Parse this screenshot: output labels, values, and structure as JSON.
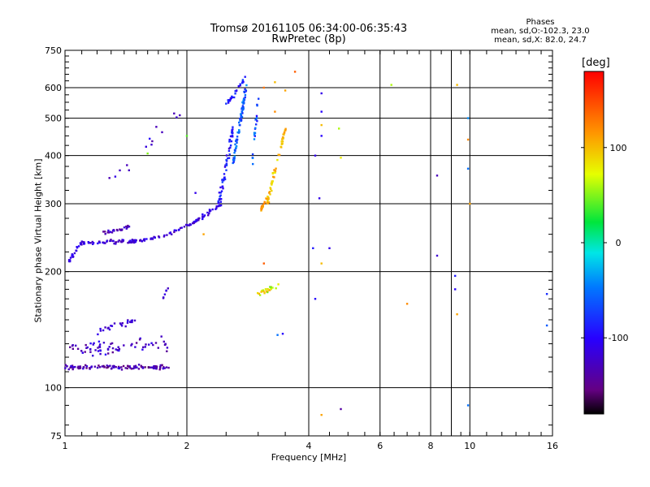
{
  "header": {
    "title_line1": "Tromsø 20161105 06:34:00-06:35:43",
    "title_line2": "RwPretec (8p)"
  },
  "phases_box": {
    "title": "Phases",
    "line_o": "mean, sd,O:-102.3, 23.0",
    "line_x": "mean, sd,X:  82.0, 24.7"
  },
  "colorbar": {
    "unit": "[deg]",
    "min": -180,
    "max": 180,
    "ticks": [
      100,
      0,
      -100
    ],
    "tick_labels": [
      "100",
      "0",
      "-100"
    ]
  },
  "chart_data": {
    "type": "scatter",
    "xlabel": "Frequency [MHz]",
    "ylabel": "Stationary phase Virtual Height [km]",
    "x_scale": "log",
    "y_scale": "log",
    "xlim": [
      1,
      16
    ],
    "ylim": [
      75,
      750
    ],
    "x_ticks": [
      1,
      2,
      4,
      6,
      8,
      10,
      16
    ],
    "x_tick_labels": [
      "1",
      "2",
      "4",
      "6",
      "8",
      "10",
      "16"
    ],
    "y_ticks": [
      75,
      100,
      200,
      300,
      400,
      500,
      600,
      750
    ],
    "y_tick_labels": [
      "75",
      "100",
      "200",
      "300",
      "400",
      "500",
      "600",
      "750"
    ],
    "x_gridlines": [
      2,
      4,
      6,
      8,
      9,
      10
    ],
    "y_gridlines": [
      100,
      200,
      300,
      400,
      500,
      600
    ],
    "clusters": [
      {
        "from": [
          1.02,
          212
        ],
        "to": [
          1.1,
          238
        ],
        "n": 20,
        "spread": 0.012,
        "phase": [
          -120,
          -100
        ]
      },
      {
        "from": [
          1.1,
          238
        ],
        "to": [
          1.5,
          240
        ],
        "n": 60,
        "spread": 0.012,
        "phase": [
          -140,
          -100
        ]
      },
      {
        "from": [
          1.2,
          250
        ],
        "to": [
          1.45,
          262
        ],
        "n": 25,
        "spread": 0.012,
        "phase": [
          -150,
          -110
        ]
      },
      {
        "from": [
          1.5,
          240
        ],
        "to": [
          1.8,
          248
        ],
        "n": 22,
        "spread": 0.008,
        "phase": [
          -140,
          -100
        ]
      },
      {
        "from": [
          1.8,
          250
        ],
        "to": [
          2.1,
          270
        ],
        "n": 25,
        "spread": 0.008,
        "phase": [
          -140,
          -100
        ]
      },
      {
        "from": [
          2.1,
          270
        ],
        "to": [
          2.45,
          300
        ],
        "n": 30,
        "spread": 0.012,
        "phase": [
          -130,
          -95
        ]
      },
      {
        "from": [
          2.4,
          300
        ],
        "to": [
          2.6,
          470
        ],
        "n": 60,
        "spread": 0.02,
        "phase": [
          -120,
          -70
        ]
      },
      {
        "from": [
          2.6,
          380
        ],
        "to": [
          2.8,
          600
        ],
        "n": 70,
        "spread": 0.015,
        "phase": [
          -90,
          -30
        ]
      },
      {
        "from": [
          2.5,
          540
        ],
        "to": [
          2.8,
          640
        ],
        "n": 25,
        "spread": 0.015,
        "phase": [
          -110,
          -70
        ]
      },
      {
        "from": [
          2.9,
          380
        ],
        "to": [
          3.0,
          560
        ],
        "n": 20,
        "spread": 0.012,
        "phase": [
          -100,
          -40
        ]
      },
      {
        "from": [
          3.05,
          290
        ],
        "to": [
          3.15,
          310
        ],
        "n": 15,
        "spread": 0.01,
        "phase": [
          100,
          130
        ]
      },
      {
        "from": [
          3.15,
          300
        ],
        "to": [
          3.5,
          470
        ],
        "n": 55,
        "spread": 0.015,
        "phase": [
          80,
          120
        ]
      },
      {
        "from": [
          3.0,
          175
        ],
        "to": [
          3.4,
          185
        ],
        "n": 25,
        "spread": 0.018,
        "phase": [
          40,
          110
        ]
      },
      {
        "from": [
          1.0,
          113
        ],
        "to": [
          1.8,
          113
        ],
        "n": 110,
        "spread": 0.012,
        "phase": [
          -160,
          -110
        ]
      },
      {
        "from": [
          1.0,
          125
        ],
        "to": [
          1.8,
          130
        ],
        "n": 70,
        "spread": 0.045,
        "phase": [
          -150,
          -100
        ]
      },
      {
        "from": [
          1.2,
          140
        ],
        "to": [
          1.5,
          150
        ],
        "n": 25,
        "spread": 0.015,
        "phase": [
          -130,
          -100
        ]
      },
      {
        "from": [
          1.3,
          340
        ],
        "to": [
          1.9,
          520
        ],
        "n": 14,
        "spread": 0.04,
        "phase": [
          -140,
          -100
        ]
      },
      {
        "from": [
          1.75,
          170
        ],
        "to": [
          1.8,
          185
        ],
        "n": 6,
        "spread": 0.008,
        "phase": [
          -140,
          -110
        ]
      }
    ],
    "points": [
      [
        4.3,
        580,
        -110
      ],
      [
        4.3,
        85,
        110
      ],
      [
        4.8,
        88,
        -140
      ],
      [
        4.5,
        230,
        -110
      ],
      [
        4.1,
        230,
        -90
      ],
      [
        4.15,
        170,
        -100
      ],
      [
        4.3,
        210,
        100
      ],
      [
        4.3,
        480,
        100
      ],
      [
        4.3,
        450,
        -100
      ],
      [
        4.75,
        470,
        60
      ],
      [
        4.8,
        395,
        80
      ],
      [
        6.4,
        610,
        60
      ],
      [
        7.0,
        165,
        120
      ],
      [
        8.3,
        355,
        -130
      ],
      [
        8.3,
        220,
        -120
      ],
      [
        9.2,
        195,
        -90
      ],
      [
        9.2,
        180,
        -100
      ],
      [
        9.3,
        155,
        110
      ],
      [
        9.3,
        610,
        100
      ],
      [
        9.9,
        500,
        -40
      ],
      [
        9.9,
        440,
        120
      ],
      [
        9.9,
        370,
        -50
      ],
      [
        9.9,
        90,
        -50
      ],
      [
        10.0,
        300,
        110
      ],
      [
        15.5,
        175,
        -80
      ],
      [
        15.5,
        145,
        -60
      ],
      [
        3.1,
        210,
        140
      ],
      [
        3.35,
        137,
        -50
      ],
      [
        3.45,
        138,
        -100
      ],
      [
        3.7,
        660,
        140
      ],
      [
        2.2,
        250,
        110
      ],
      [
        1.6,
        405,
        50
      ],
      [
        2.0,
        450,
        40
      ],
      [
        2.1,
        320,
        -110
      ],
      [
        3.3,
        520,
        120
      ],
      [
        3.5,
        590,
        110
      ],
      [
        3.3,
        620,
        100
      ],
      [
        3.1,
        600,
        130
      ],
      [
        4.15,
        400,
        -110
      ],
      [
        4.25,
        310,
        -110
      ],
      [
        4.3,
        520,
        -100
      ]
    ]
  }
}
